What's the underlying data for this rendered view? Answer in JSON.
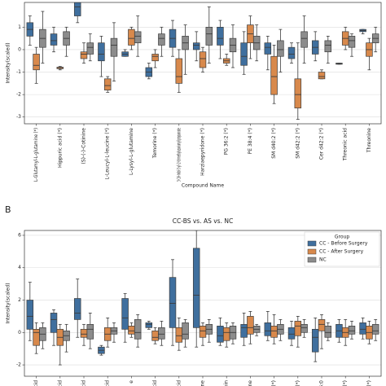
{
  "chart_data": [
    {
      "type": "box",
      "ylabel": "Intensity(scaled)",
      "xlabel": "Compound Name",
      "categories": [
        "L-Glutamyl-L-glutamine (*)",
        "Hippuric acid (*)",
        "(S)-(-)-Cotinine",
        "L-Leucyl-L-leucine (*)",
        "L-Lysyl-L-glutamine",
        "Temorine (*)",
        "3-(1H-Indol-3-yl)-2-(trimethylazaniumyl)propanoate",
        "Harziaepyridone (*)",
        "PG 36:2 (*)",
        "PE 38:4 (*)",
        "SM d40:2 (*)",
        "SM d42:2 (*)",
        "Cer d42:2 (*)",
        "Threonic acid",
        "Threonine"
      ],
      "ylim": [
        -3.3,
        2.1
      ],
      "yticks": [
        -3,
        -2,
        -1,
        0,
        1
      ],
      "grid": true,
      "series": [
        {
          "color": "#3f6f9e",
          "values": [
            [
              0.2,
              0.6,
              0.9,
              1.2,
              1.5
            ],
            [
              -0.1,
              0.2,
              0.4,
              0.7,
              1.0
            ],
            [
              1.2,
              1.5,
              1.9,
              2.1,
              2.1
            ],
            [
              -1.2,
              -0.5,
              -0.2,
              0.3,
              0.6
            ],
            [
              -0.3,
              -0.3,
              -0.2,
              -0.1,
              0.0
            ],
            [
              -1.3,
              -1.2,
              -1.0,
              -0.8,
              -0.6
            ],
            [
              -0.3,
              0.1,
              0.5,
              0.9,
              1.3
            ],
            [
              -0.5,
              0.0,
              0.2,
              0.3,
              0.8
            ],
            [
              -0.4,
              0.2,
              0.5,
              1.0,
              1.3
            ],
            [
              -1.1,
              -0.7,
              -0.3,
              0.3,
              0.8
            ],
            [
              -0.9,
              -0.2,
              0.1,
              0.3,
              0.6
            ],
            [
              -0.6,
              -0.4,
              -0.2,
              0.1,
              0.3
            ],
            [
              -0.5,
              -0.2,
              0.1,
              0.4,
              0.8
            ],
            [
              -0.65,
              -0.65,
              -0.62,
              -0.6,
              -0.6
            ],
            [
              0.7,
              0.8,
              0.85,
              0.9,
              0.9
            ]
          ]
        },
        {
          "color": "#d8894c",
          "values": [
            [
              -1.5,
              -0.9,
              -0.7,
              -0.2,
              0.1
            ],
            [
              -0.9,
              -0.85,
              -0.8,
              -0.78,
              -0.75
            ],
            [
              -0.6,
              -0.4,
              -0.2,
              -0.1,
              0.3
            ],
            [
              -1.9,
              -1.8,
              -1.6,
              -1.3,
              -1.2
            ],
            [
              0.0,
              0.2,
              0.5,
              0.9,
              1.0
            ],
            [
              -0.8,
              -0.5,
              -0.3,
              -0.2,
              0.0
            ],
            [
              -1.9,
              -1.5,
              -1.2,
              -0.4,
              0.0
            ],
            [
              -1.0,
              -0.8,
              -0.4,
              -0.1,
              0.1
            ],
            [
              -0.7,
              -0.6,
              -0.5,
              -0.4,
              -0.2
            ],
            [
              -0.4,
              0.3,
              0.7,
              1.1,
              1.5
            ],
            [
              -2.4,
              -2.0,
              -1.2,
              -0.3,
              0.2
            ],
            [
              -3.1,
              -2.6,
              -2.0,
              -1.3,
              0.3
            ],
            [
              -1.3,
              -1.3,
              -1.2,
              -1.0,
              -0.9
            ],
            [
              0.0,
              0.2,
              0.5,
              0.8,
              1.0
            ],
            [
              -0.9,
              -0.3,
              0.0,
              0.3,
              0.5
            ]
          ]
        },
        {
          "color": "#8c8c8c",
          "values": [
            [
              -0.6,
              0.1,
              0.5,
              0.9,
              1.7
            ],
            [
              -0.3,
              0.2,
              0.5,
              0.8,
              1.0
            ],
            [
              -0.5,
              -0.2,
              0.1,
              0.3,
              0.7
            ],
            [
              -1.4,
              -0.3,
              0.2,
              0.5,
              1.2
            ],
            [
              -0.3,
              0.3,
              0.6,
              0.8,
              1.5
            ],
            [
              -0.3,
              0.2,
              0.5,
              0.7,
              1.0
            ],
            [
              -1.1,
              0.0,
              0.3,
              0.6,
              1.1
            ],
            [
              -0.6,
              0.2,
              0.7,
              1.0,
              1.9
            ],
            [
              -0.8,
              -0.1,
              0.2,
              0.5,
              1.1
            ],
            [
              -0.5,
              0.0,
              0.3,
              0.6,
              1.1
            ],
            [
              -1.0,
              -0.3,
              0.0,
              0.4,
              0.9
            ],
            [
              -0.6,
              0.1,
              0.5,
              0.8,
              1.5
            ],
            [
              -0.6,
              -0.1,
              0.2,
              0.4,
              0.6
            ],
            [
              -0.3,
              0.1,
              0.4,
              0.6,
              0.7
            ],
            [
              -0.1,
              0.3,
              0.5,
              0.7,
              1.0
            ]
          ]
        }
      ]
    },
    {
      "type": "box",
      "panel_label": "B",
      "title": "CC-BS vs. AS vs. NC",
      "ylabel": "Intensity(scaled)",
      "legend_title": "Group",
      "legend": "upper right",
      "categories": [
        "acid",
        "acid",
        "acid",
        "acid",
        "e",
        "acid",
        "acid",
        "line",
        "nin",
        "dine",
        "e (*)",
        "e (*)",
        "36:0",
        "e (*)",
        "e (*)"
      ],
      "ylim": [
        -2.7,
        6.3
      ],
      "yticks": [
        -2,
        0,
        2,
        4,
        6
      ],
      "grid": true,
      "series": [
        {
          "name": "CC - Before Surgery",
          "color": "#3f6f9e",
          "values": [
            [
              -0.5,
              0.2,
              1.0,
              2.0,
              3.1
            ],
            [
              -0.8,
              0.0,
              0.8,
              1.2,
              1.4
            ],
            [
              -0.3,
              0.8,
              1.2,
              2.1,
              3.3
            ],
            [
              -1.4,
              -1.3,
              -1.1,
              -0.9,
              -0.8
            ],
            [
              -0.6,
              0.2,
              0.9,
              2.1,
              2.4
            ],
            [
              0.2,
              0.3,
              0.5,
              0.6,
              0.7
            ],
            [
              -0.8,
              0.3,
              1.8,
              3.4,
              4.5
            ],
            [
              -0.9,
              0.3,
              2.3,
              5.2,
              6.3
            ],
            [
              -0.8,
              -0.6,
              -0.2,
              0.4,
              0.9
            ],
            [
              -0.8,
              -0.3,
              0.3,
              0.5,
              1.2
            ],
            [
              -0.5,
              -0.2,
              0.1,
              0.6,
              1.3
            ],
            [
              -0.8,
              -0.4,
              -0.1,
              0.3,
              0.7
            ],
            [
              -1.8,
              -1.2,
              -0.3,
              0.2,
              0.9
            ],
            [
              -0.6,
              -0.3,
              0.1,
              0.5,
              0.8
            ],
            [
              -0.4,
              -0.1,
              0.2,
              0.6,
              0.9
            ]
          ]
        },
        {
          "name": "CC - After Surgery",
          "color": "#d8894c",
          "values": [
            [
              -1.3,
              -0.8,
              0.0,
              0.2,
              0.6
            ],
            [
              -2.0,
              -0.8,
              -0.3,
              0.2,
              0.5
            ],
            [
              -0.8,
              -0.3,
              -0.1,
              0.2,
              0.5
            ],
            [
              -0.9,
              -0.5,
              -0.1,
              0.3,
              0.9
            ],
            [
              -0.3,
              -0.1,
              0.1,
              0.4,
              0.6
            ],
            [
              -0.7,
              -0.5,
              -0.3,
              0.1,
              0.3
            ],
            [
              -1.1,
              -0.6,
              -0.2,
              0.3,
              0.9
            ],
            [
              -0.8,
              -0.3,
              0.1,
              0.4,
              0.6
            ],
            [
              -0.9,
              -0.5,
              0.0,
              0.3,
              0.6
            ],
            [
              -0.7,
              -0.1,
              0.3,
              1.0,
              1.3
            ],
            [
              -0.7,
              -0.3,
              0.1,
              0.4,
              1.1
            ],
            [
              -0.9,
              -0.2,
              0.4,
              0.7,
              1.0
            ],
            [
              -1.0,
              0.1,
              0.5,
              0.8,
              1.1
            ],
            [
              -0.8,
              -0.3,
              0.0,
              0.3,
              0.8
            ],
            [
              -0.7,
              -0.4,
              0.0,
              0.4,
              0.7
            ]
          ]
        },
        {
          "name": "NC",
          "color": "#8c8c8c",
          "values": [
            [
              -1.0,
              -0.5,
              -0.1,
              0.3,
              0.6
            ],
            [
              -1.2,
              -0.5,
              -0.2,
              0.1,
              0.5
            ],
            [
              -1.0,
              -0.4,
              0.2,
              0.5,
              1.2
            ],
            [
              -0.6,
              -0.1,
              0.1,
              0.3,
              0.6
            ],
            [
              -0.9,
              -0.4,
              0.0,
              0.8,
              1.1
            ],
            [
              -0.8,
              -0.4,
              -0.1,
              0.3,
              0.7
            ],
            [
              -0.9,
              -0.4,
              -0.1,
              0.6,
              0.8
            ],
            [
              -0.6,
              -0.1,
              0.2,
              0.5,
              0.8
            ],
            [
              -0.7,
              -0.4,
              0.0,
              0.4,
              0.6
            ],
            [
              -0.2,
              0.0,
              0.2,
              0.4,
              0.5
            ],
            [
              -0.5,
              -0.1,
              0.2,
              0.5,
              0.8
            ],
            [
              -0.3,
              0.0,
              0.3,
              0.5,
              0.8
            ],
            [
              -0.5,
              -0.3,
              0.0,
              0.4,
              0.6
            ],
            [
              -0.4,
              -0.1,
              0.1,
              0.4,
              0.7
            ],
            [
              -0.5,
              -0.1,
              0.1,
              0.5,
              0.8
            ]
          ]
        }
      ]
    }
  ]
}
